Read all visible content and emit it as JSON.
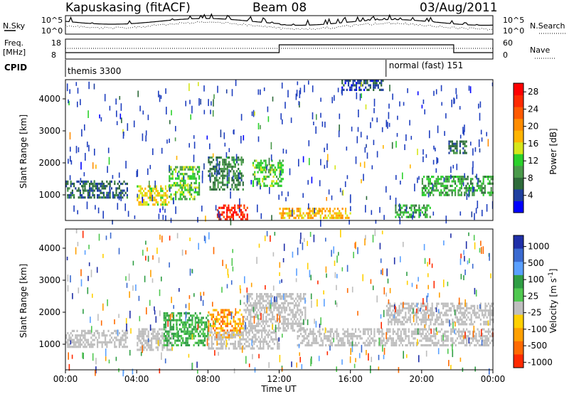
{
  "header": {
    "station": "Kapuskasing (fitACF)",
    "beam": "Beam 08",
    "date": "03/Aug/2011"
  },
  "noise_panel": {
    "left_label": "N.Sky",
    "right_label": "N.Search",
    "left_ticks": [
      "10^5",
      "10^0"
    ],
    "right_ticks": [
      "10^5",
      "10^0"
    ]
  },
  "freq_panel": {
    "left_label_1": "Freq.",
    "left_label_2": "[MHz]",
    "right_label": "Nave",
    "left_ticks": [
      "18",
      "8"
    ],
    "right_ticks": [
      "60",
      "0"
    ]
  },
  "cpid": {
    "label": "CPID",
    "segments": [
      {
        "name": "themis 3300",
        "start_hour": 0.0
      },
      {
        "name": "normal (fast) 151",
        "start_hour": 18.0
      }
    ]
  },
  "x_axis": {
    "label": "Time UT",
    "ticks": [
      "00:00",
      "04:00",
      "08:00",
      "12:00",
      "16:00",
      "20:00",
      "00:00"
    ]
  },
  "chart_data": [
    {
      "type": "heatmap",
      "title": "",
      "xlabel": "Time UT",
      "ylabel": "Slant Range [km]",
      "xlim": [
        0,
        24
      ],
      "ylim": [
        200,
        4600
      ],
      "y_ticks": [
        "1000",
        "2000",
        "3000",
        "4000"
      ],
      "colorbar": {
        "label": "Power [dB]",
        "ticks": [
          "4",
          "8",
          "12",
          "16",
          "20",
          "24",
          "28"
        ],
        "range": [
          0,
          30
        ],
        "colors": [
          "#0000ff",
          "#1f3f9f",
          "#2e6b3a",
          "#4a9a4a",
          "#2bd12b",
          "#d6e61a",
          "#ffb400",
          "#ff8c00",
          "#ff5a00",
          "#ff2a00",
          "#ff0000"
        ]
      },
      "regions": [
        {
          "t_start": 0.0,
          "t_end": 3.5,
          "r_low": 900,
          "r_high": 1450,
          "value": 6
        },
        {
          "t_start": 4.0,
          "t_end": 5.8,
          "r_low": 700,
          "r_high": 1300,
          "value": 16
        },
        {
          "t_start": 5.8,
          "t_end": 7.5,
          "r_low": 900,
          "r_high": 1900,
          "value": 12
        },
        {
          "t_start": 8.0,
          "t_end": 10.0,
          "r_low": 1200,
          "r_high": 2200,
          "value": 8
        },
        {
          "t_start": 8.5,
          "t_end": 10.2,
          "r_low": 250,
          "r_high": 700,
          "value": 26
        },
        {
          "t_start": 10.5,
          "t_end": 12.2,
          "r_low": 1300,
          "r_high": 2100,
          "value": 12
        },
        {
          "t_start": 12.0,
          "t_end": 16.0,
          "r_low": 250,
          "r_high": 600,
          "value": 18
        },
        {
          "t_start": 18.5,
          "t_end": 20.5,
          "r_low": 300,
          "r_high": 700,
          "value": 10
        },
        {
          "t_start": 20.0,
          "t_end": 24.0,
          "r_low": 1000,
          "r_high": 1600,
          "value": 10
        },
        {
          "t_start": 21.5,
          "t_end": 22.5,
          "r_low": 2300,
          "r_high": 2700,
          "value": 6
        },
        {
          "t_start": 15.5,
          "t_end": 17.8,
          "r_low": 4300,
          "r_high": 4600,
          "value": 5
        }
      ]
    },
    {
      "type": "heatmap",
      "title": "",
      "xlabel": "Time UT",
      "ylabel": "Slant Range [km]",
      "xlim": [
        0,
        24
      ],
      "ylim": [
        200,
        4600
      ],
      "y_ticks": [
        "1000",
        "2000",
        "3000",
        "4000"
      ],
      "colorbar": {
        "label": "Velocity [m s^-1]",
        "ticks": [
          "1000",
          "500",
          "100",
          "25",
          "-25",
          "-100",
          "-500",
          "-1000"
        ],
        "colors": [
          "#1f2fa8",
          "#3a6ad0",
          "#5aa0ff",
          "#2f9e44",
          "#50c850",
          "#bebebe",
          "#ffd000",
          "#ffa000",
          "#ff6a00",
          "#ff2a00"
        ]
      },
      "regions": [
        {
          "t_start": 0.0,
          "t_end": 3.5,
          "r_low": 900,
          "r_high": 1450,
          "value": "ground"
        },
        {
          "t_start": 4.0,
          "t_end": 6.0,
          "r_low": 800,
          "r_high": 1500,
          "value": "ground"
        },
        {
          "t_start": 5.5,
          "t_end": 8.0,
          "r_low": 1000,
          "r_high": 2000,
          "value": "positive"
        },
        {
          "t_start": 8.0,
          "t_end": 10.0,
          "r_low": 1200,
          "r_high": 2100,
          "value": "negative"
        },
        {
          "t_start": 8.0,
          "t_end": 12.0,
          "r_low": 900,
          "r_high": 1400,
          "value": "ground"
        },
        {
          "t_start": 10.0,
          "t_end": 13.5,
          "r_low": 1400,
          "r_high": 2600,
          "value": "ground"
        },
        {
          "t_start": 13.0,
          "t_end": 24.0,
          "r_low": 1000,
          "r_high": 1500,
          "value": "ground"
        },
        {
          "t_start": 18.0,
          "t_end": 24.0,
          "r_low": 1600,
          "r_high": 2300,
          "value": "ground"
        }
      ]
    }
  ]
}
